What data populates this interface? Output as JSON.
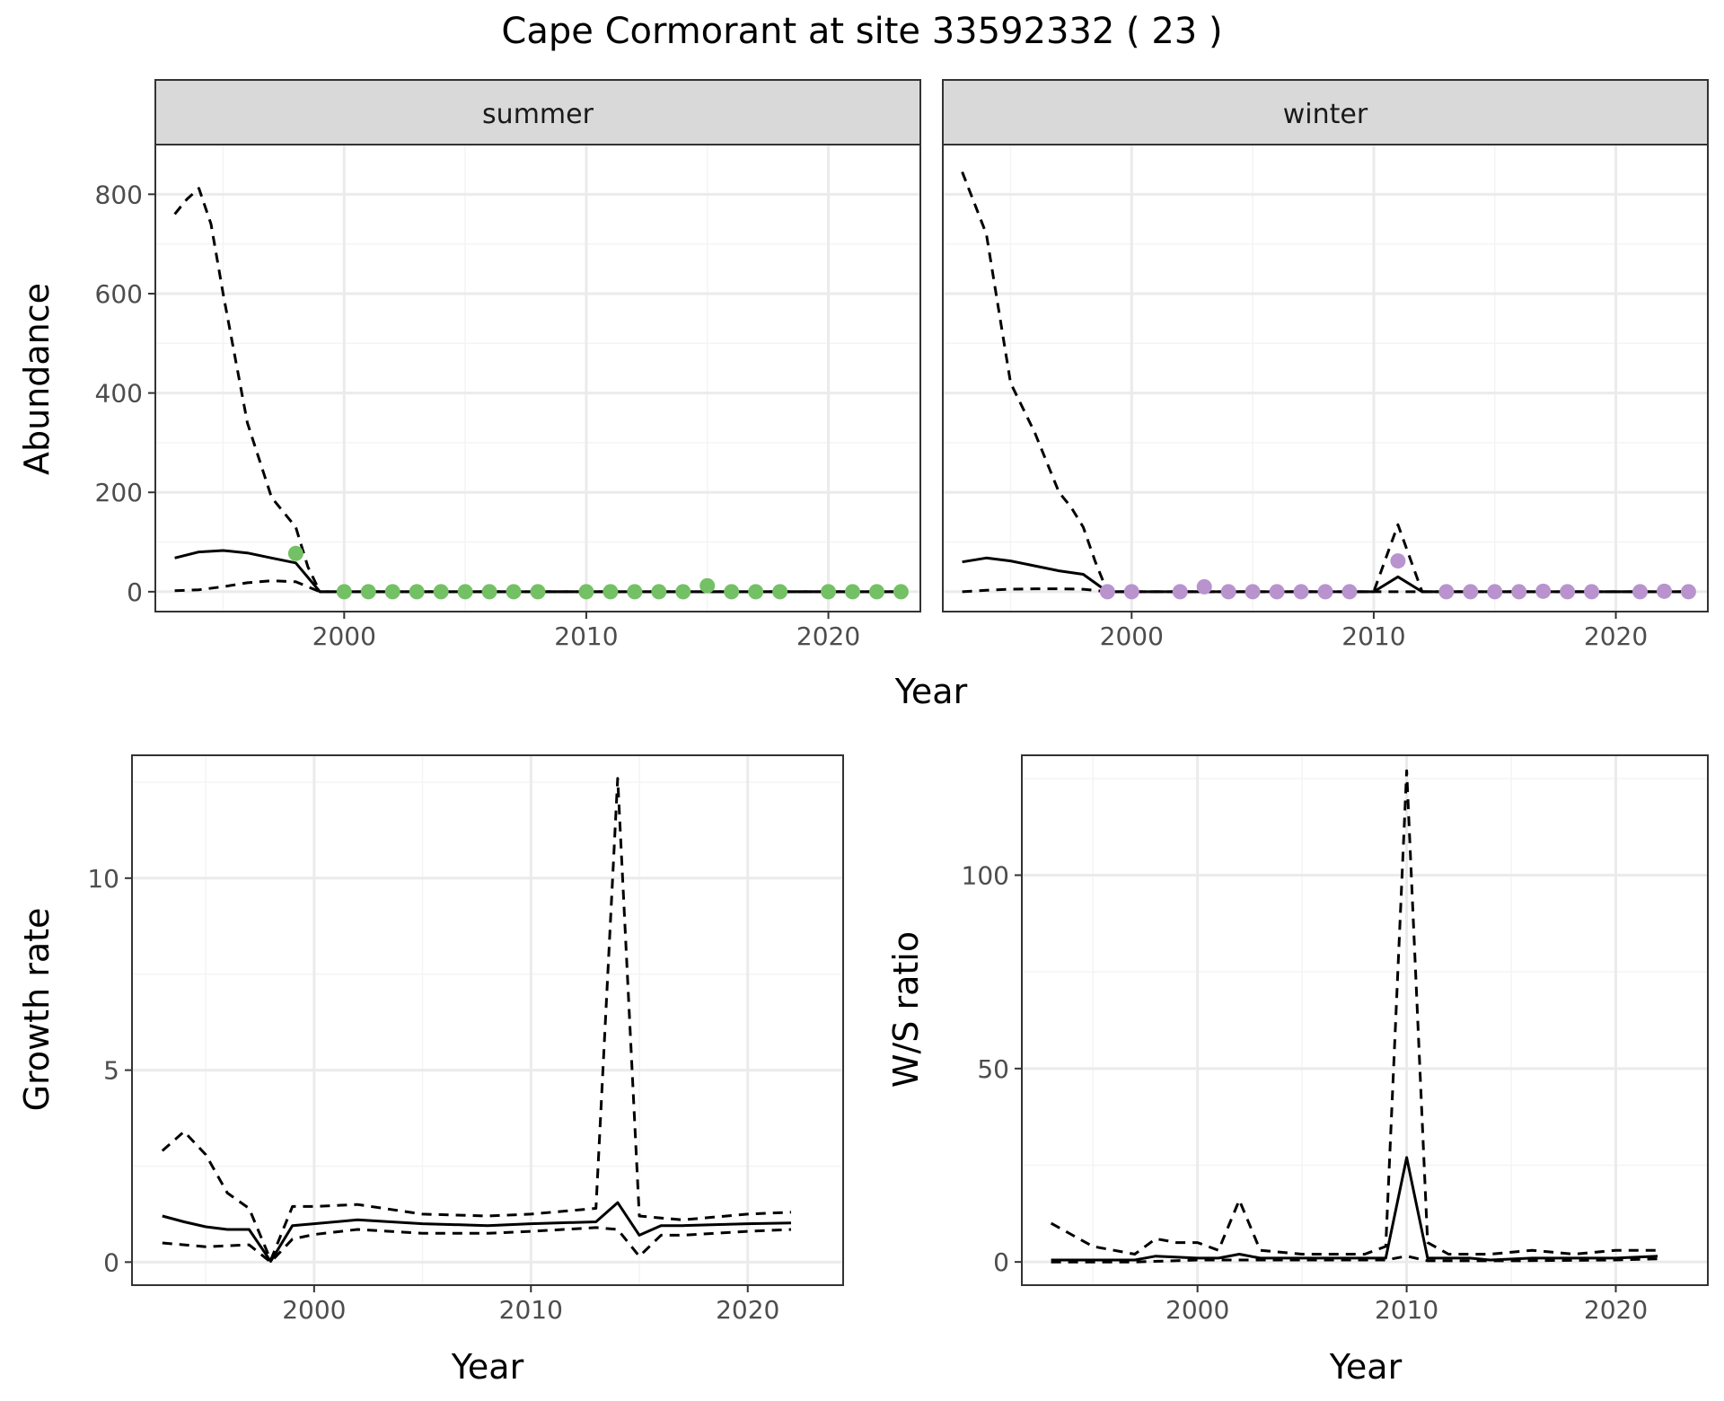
{
  "figure": {
    "title": "Cape Cormorant at site 33592332 ( 23 )"
  },
  "colors": {
    "summer_points": "#74c065",
    "winter_points": "#b893cd",
    "lines": "#000000",
    "strip_fill": "#d9d9d9",
    "grid_major": "#ebebeb",
    "grid_minor": "#f4f4f4"
  },
  "chart_data": [
    {
      "type": "line",
      "panel": "abundance",
      "facets": [
        "summer",
        "winter"
      ],
      "xlabel": "Year",
      "ylabel": "Abundance",
      "xlim": [
        1992.2,
        2023.8
      ],
      "ylim": [
        -40,
        900
      ],
      "x_ticks": [
        2000,
        2010,
        2020
      ],
      "y_ticks": [
        0,
        200,
        400,
        600,
        800
      ],
      "summer": {
        "estimate": {
          "x": [
            1993,
            1994,
            1995,
            1996,
            1997,
            1998,
            1999,
            2000,
            2005,
            2010,
            2015,
            2020,
            2023
          ],
          "y": [
            68,
            80,
            83,
            78,
            68,
            58,
            0,
            0,
            0,
            0,
            0,
            0,
            0
          ]
        },
        "lower": {
          "x": [
            1993,
            1994,
            1995,
            1996,
            1997,
            1998,
            1999,
            2000,
            2010,
            2023
          ],
          "y": [
            2,
            4,
            10,
            18,
            22,
            20,
            0,
            0,
            0,
            0
          ]
        },
        "upper": {
          "x": [
            1993,
            1993.5,
            1994,
            1994.5,
            1995,
            1996,
            1997,
            1998,
            1998.5,
            1999,
            2000,
            2010,
            2023
          ],
          "y": [
            760,
            790,
            812,
            740,
            600,
            340,
            190,
            130,
            50,
            0,
            0,
            0,
            0
          ]
        },
        "observed": {
          "x": [
            1998,
            2000,
            2001,
            2002,
            2003,
            2004,
            2005,
            2006,
            2007,
            2008,
            2010,
            2011,
            2012,
            2013,
            2014,
            2015,
            2016,
            2017,
            2018,
            2020,
            2021,
            2022,
            2023
          ],
          "y": [
            77,
            0,
            0,
            0,
            0,
            0,
            0,
            0,
            0,
            0,
            0,
            0,
            0,
            0,
            0,
            12,
            0,
            0,
            0,
            0,
            0,
            0,
            0
          ]
        }
      },
      "winter": {
        "estimate": {
          "x": [
            1993,
            1994,
            1995,
            1996,
            1997,
            1998,
            1999,
            2000,
            2005,
            2010,
            2011,
            2012,
            2015,
            2020,
            2023
          ],
          "y": [
            60,
            68,
            62,
            52,
            42,
            35,
            0,
            0,
            0,
            0,
            30,
            0,
            0,
            0,
            0
          ]
        },
        "lower": {
          "x": [
            1993,
            1994,
            1995,
            1996,
            1997,
            1998,
            1999,
            2000,
            2010,
            2023
          ],
          "y": [
            0,
            3,
            5,
            6,
            6,
            5,
            0,
            0,
            0,
            0
          ]
        },
        "upper": {
          "x": [
            1993,
            1994,
            1995,
            1996,
            1997,
            1997.5,
            1998,
            1998.5,
            1999,
            2000,
            2010,
            2011,
            2012,
            2015,
            2023
          ],
          "y": [
            845,
            720,
            420,
            320,
            200,
            170,
            130,
            60,
            0,
            0,
            0,
            135,
            0,
            0,
            0
          ]
        },
        "observed": {
          "x": [
            1999,
            2000,
            2002,
            2003,
            2004,
            2005,
            2006,
            2007,
            2008,
            2009,
            2011,
            2013,
            2014,
            2015,
            2016,
            2017,
            2018,
            2019,
            2021,
            2022,
            2023
          ],
          "y": [
            0,
            0,
            0,
            10,
            0,
            0,
            0,
            0,
            0,
            0,
            62,
            0,
            0,
            0,
            0,
            1,
            0,
            0,
            0,
            1,
            0
          ]
        }
      }
    },
    {
      "type": "line",
      "panel": "growth",
      "xlabel": "Year",
      "ylabel": "Growth rate",
      "xlim": [
        1991.6,
        2024.4
      ],
      "ylim": [
        -0.6,
        13.2
      ],
      "x_ticks": [
        2000,
        2010,
        2020
      ],
      "y_ticks": [
        0,
        5,
        10
      ],
      "estimate": {
        "x": [
          1993,
          1994,
          1995,
          1996,
          1997,
          1998,
          1999,
          2000,
          2002,
          2005,
          2008,
          2010,
          2013,
          2014,
          2015,
          2016,
          2017,
          2020,
          2022
        ],
        "y": [
          1.2,
          1.05,
          0.92,
          0.85,
          0.85,
          0.02,
          0.95,
          1.0,
          1.1,
          1.0,
          0.95,
          1.0,
          1.05,
          1.55,
          0.7,
          0.95,
          0.95,
          1.0,
          1.02
        ]
      },
      "lower": {
        "x": [
          1993,
          1995,
          1997,
          1998,
          1999,
          2000,
          2002,
          2005,
          2008,
          2010,
          2013,
          2014,
          2015,
          2016,
          2017,
          2020,
          2022
        ],
        "y": [
          0.5,
          0.4,
          0.45,
          0.0,
          0.6,
          0.72,
          0.85,
          0.75,
          0.75,
          0.8,
          0.9,
          0.85,
          0.15,
          0.7,
          0.7,
          0.8,
          0.85
        ]
      },
      "upper": {
        "x": [
          1993,
          1994,
          1995,
          1996,
          1997,
          1998,
          1999,
          2000,
          2002,
          2005,
          2008,
          2010,
          2013,
          2014,
          2015,
          2016,
          2017,
          2020,
          2022
        ],
        "y": [
          2.9,
          3.4,
          2.8,
          1.8,
          1.4,
          0.05,
          1.45,
          1.45,
          1.5,
          1.25,
          1.2,
          1.25,
          1.4,
          12.6,
          1.2,
          1.15,
          1.1,
          1.25,
          1.3
        ]
      }
    },
    {
      "type": "line",
      "panel": "ratio",
      "xlabel": "Year",
      "ylabel": "W/S ratio",
      "xlim": [
        1991.6,
        2024.4
      ],
      "ylim": [
        -6,
        131
      ],
      "x_ticks": [
        2000,
        2010,
        2020
      ],
      "y_ticks": [
        0,
        50,
        100
      ],
      "estimate": {
        "x": [
          1993,
          1995,
          1997,
          1998,
          2000,
          2001,
          2002,
          2003,
          2005,
          2008,
          2009,
          2010,
          2011,
          2013,
          2014,
          2016,
          2018,
          2020,
          2022
        ],
        "y": [
          0.5,
          0.5,
          0.5,
          1.5,
          1.0,
          1.0,
          2.0,
          1.0,
          1.0,
          1.0,
          1.0,
          27,
          1.0,
          1.0,
          0.5,
          1.0,
          1.0,
          1.0,
          1.5
        ]
      },
      "lower": {
        "x": [
          1993,
          1995,
          1997,
          2000,
          2005,
          2009,
          2010,
          2011,
          2015,
          2020,
          2022
        ],
        "y": [
          0,
          0,
          0,
          0.5,
          0.5,
          0.5,
          1.5,
          0.3,
          0.3,
          0.5,
          0.8
        ]
      },
      "upper": {
        "x": [
          1993,
          1994,
          1995,
          1996,
          1997,
          1998,
          1999,
          2000,
          2001,
          2002,
          2003,
          2005,
          2008,
          2009,
          2010,
          2011,
          2012,
          2014,
          2016,
          2018,
          2020,
          2022
        ],
        "y": [
          10,
          7,
          4,
          3,
          2,
          6,
          5,
          5,
          3,
          16,
          3,
          2,
          2,
          4,
          127,
          5,
          2,
          2,
          3,
          2,
          3,
          3
        ]
      }
    }
  ]
}
